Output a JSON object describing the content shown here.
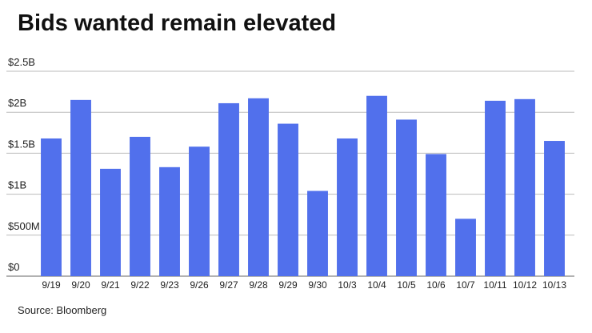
{
  "chart_data": {
    "type": "bar",
    "title": "Bids wanted remain elevated",
    "source": "Source: Bloomberg",
    "categories": [
      "9/19",
      "9/20",
      "9/21",
      "9/22",
      "9/23",
      "9/26",
      "9/27",
      "9/28",
      "9/29",
      "9/30",
      "10/3",
      "10/4",
      "10/5",
      "10/6",
      "10/7",
      "10/11",
      "10/12",
      "10/13"
    ],
    "values": [
      1.68,
      2.15,
      1.31,
      1.7,
      1.33,
      1.58,
      2.11,
      2.17,
      1.86,
      1.04,
      1.68,
      2.2,
      1.91,
      1.49,
      0.7,
      2.14,
      2.16,
      1.65
    ],
    "color": "#5170ec",
    "ylim": [
      0,
      2.5
    ],
    "yticks": [
      {
        "value": 0,
        "label": "$0"
      },
      {
        "value": 0.5,
        "label": "$500M"
      },
      {
        "value": 1,
        "label": "$1B"
      },
      {
        "value": 1.5,
        "label": "$1.5B"
      },
      {
        "value": 2,
        "label": "$2B"
      },
      {
        "value": 2.5,
        "label": "$2.5B"
      }
    ],
    "grid": true
  }
}
